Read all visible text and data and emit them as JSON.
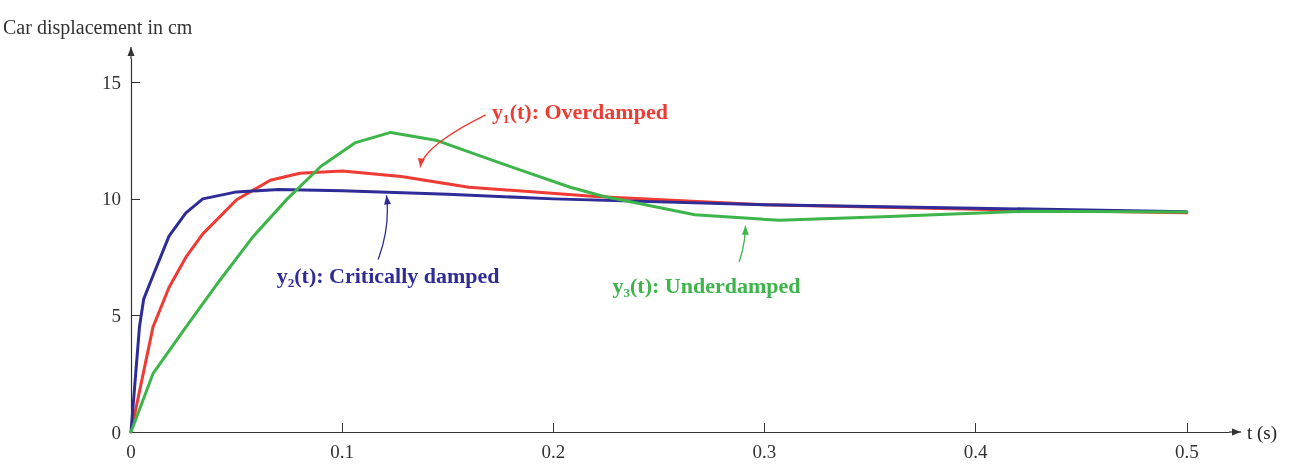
{
  "chart_data": {
    "type": "line",
    "ylabel": "Car displacement in cm",
    "xlabel": "t (s)",
    "xlim": [
      0,
      0.52
    ],
    "xticks": [
      0,
      0.1,
      0.2,
      0.3,
      0.4,
      0.5
    ],
    "ylim": [
      0,
      16
    ],
    "yticks": [
      0,
      5,
      10,
      15
    ],
    "grid": false,
    "marker": "none",
    "line_style": "solid",
    "series": [
      {
        "name": "y₁(t): Overdamped",
        "color": "#ef3b33",
        "x": [
          0,
          0.0104,
          0.018,
          0.026,
          0.034,
          0.05,
          0.066,
          0.08,
          0.1,
          0.128,
          0.16,
          0.22,
          0.3,
          0.4,
          0.5
        ],
        "values": [
          0,
          4.5,
          6.2,
          7.5,
          8.5,
          9.96,
          10.8,
          11.1,
          11.2,
          10.96,
          10.5,
          10.1,
          9.75,
          9.55,
          9.4
        ]
      },
      {
        "name": "y₂(t): Critically damped",
        "color": "#2f2c97",
        "x": [
          0,
          0.004,
          0.006,
          0.0104,
          0.018,
          0.026,
          0.034,
          0.05,
          0.07,
          0.1,
          0.15,
          0.2,
          0.3,
          0.4,
          0.5
        ],
        "values": [
          0,
          4.5,
          5.7,
          6.7,
          8.4,
          9.4,
          10.0,
          10.3,
          10.4,
          10.35,
          10.2,
          10.0,
          9.75,
          9.6,
          9.45
        ]
      },
      {
        "name": "y₃(t): Underdamped",
        "color": "#3db54a",
        "x": [
          0,
          0.0104,
          0.026,
          0.042,
          0.058,
          0.074,
          0.09,
          0.106,
          0.123,
          0.145,
          0.176,
          0.208,
          0.224,
          0.233,
          0.267,
          0.307,
          0.356,
          0.424,
          0.5
        ],
        "values": [
          0,
          2.5,
          4.5,
          6.5,
          8.4,
          10.0,
          11.4,
          12.4,
          12.85,
          12.5,
          11.5,
          10.5,
          10.1,
          9.94,
          9.32,
          9.08,
          9.23,
          9.47,
          9.44
        ]
      }
    ]
  }
}
